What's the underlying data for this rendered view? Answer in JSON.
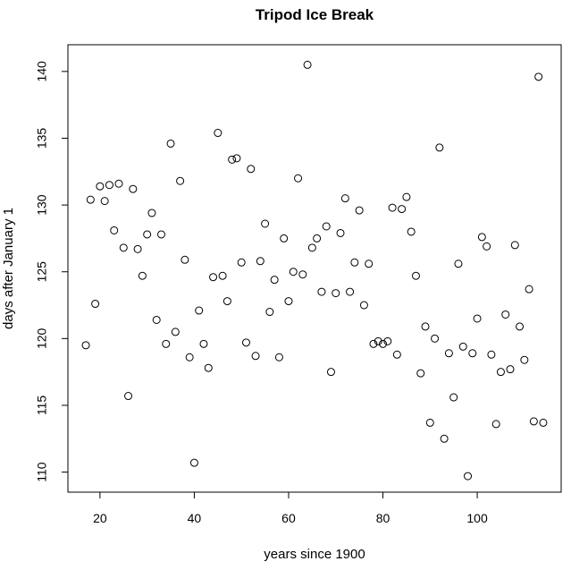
{
  "chart_data": {
    "type": "scatter",
    "title": "Tripod Ice Break",
    "xlabel": "years since 1900",
    "ylabel": "days after January 1",
    "xlim": [
      13.2,
      117.8
    ],
    "ylim": [
      108.5,
      142.0
    ],
    "x_ticks": [
      20,
      40,
      60,
      80,
      100
    ],
    "y_ticks": [
      110,
      115,
      120,
      125,
      130,
      135,
      140
    ],
    "grid": false,
    "marker": "open-circle",
    "points": [
      {
        "x": 17,
        "y": 119.5
      },
      {
        "x": 18,
        "y": 130.4
      },
      {
        "x": 19,
        "y": 122.6
      },
      {
        "x": 20,
        "y": 131.4
      },
      {
        "x": 21,
        "y": 130.3
      },
      {
        "x": 22,
        "y": 131.5
      },
      {
        "x": 23,
        "y": 128.1
      },
      {
        "x": 24,
        "y": 131.6
      },
      {
        "x": 25,
        "y": 126.8
      },
      {
        "x": 26,
        "y": 115.7
      },
      {
        "x": 27,
        "y": 131.2
      },
      {
        "x": 28,
        "y": 126.7
      },
      {
        "x": 29,
        "y": 124.7
      },
      {
        "x": 30,
        "y": 127.8
      },
      {
        "x": 31,
        "y": 129.4
      },
      {
        "x": 32,
        "y": 121.4
      },
      {
        "x": 33,
        "y": 127.8
      },
      {
        "x": 34,
        "y": 119.6
      },
      {
        "x": 35,
        "y": 134.6
      },
      {
        "x": 36,
        "y": 120.5
      },
      {
        "x": 37,
        "y": 131.8
      },
      {
        "x": 38,
        "y": 125.9
      },
      {
        "x": 39,
        "y": 118.6
      },
      {
        "x": 40,
        "y": 110.7
      },
      {
        "x": 41,
        "y": 122.1
      },
      {
        "x": 42,
        "y": 119.6
      },
      {
        "x": 43,
        "y": 117.8
      },
      {
        "x": 44,
        "y": 124.6
      },
      {
        "x": 45,
        "y": 135.4
      },
      {
        "x": 46,
        "y": 124.7
      },
      {
        "x": 47,
        "y": 122.8
      },
      {
        "x": 48,
        "y": 133.4
      },
      {
        "x": 49,
        "y": 133.5
      },
      {
        "x": 50,
        "y": 125.7
      },
      {
        "x": 51,
        "y": 119.7
      },
      {
        "x": 52,
        "y": 132.7
      },
      {
        "x": 53,
        "y": 118.7
      },
      {
        "x": 54,
        "y": 125.8
      },
      {
        "x": 55,
        "y": 128.6
      },
      {
        "x": 56,
        "y": 122.0
      },
      {
        "x": 57,
        "y": 124.4
      },
      {
        "x": 58,
        "y": 118.6
      },
      {
        "x": 59,
        "y": 127.5
      },
      {
        "x": 60,
        "y": 122.8
      },
      {
        "x": 61,
        "y": 125.0
      },
      {
        "x": 62,
        "y": 132.0
      },
      {
        "x": 63,
        "y": 124.8
      },
      {
        "x": 64,
        "y": 140.5
      },
      {
        "x": 65,
        "y": 126.8
      },
      {
        "x": 66,
        "y": 127.5
      },
      {
        "x": 67,
        "y": 123.5
      },
      {
        "x": 68,
        "y": 128.4
      },
      {
        "x": 69,
        "y": 117.5
      },
      {
        "x": 70,
        "y": 123.4
      },
      {
        "x": 71,
        "y": 127.9
      },
      {
        "x": 72,
        "y": 130.5
      },
      {
        "x": 73,
        "y": 123.5
      },
      {
        "x": 74,
        "y": 125.7
      },
      {
        "x": 75,
        "y": 129.6
      },
      {
        "x": 76,
        "y": 122.5
      },
      {
        "x": 77,
        "y": 125.6
      },
      {
        "x": 78,
        "y": 119.6
      },
      {
        "x": 79,
        "y": 119.8
      },
      {
        "x": 80,
        "y": 119.6
      },
      {
        "x": 81,
        "y": 119.8
      },
      {
        "x": 82,
        "y": 129.8
      },
      {
        "x": 83,
        "y": 118.8
      },
      {
        "x": 84,
        "y": 129.7
      },
      {
        "x": 85,
        "y": 130.6
      },
      {
        "x": 86,
        "y": 128.0
      },
      {
        "x": 87,
        "y": 124.7
      },
      {
        "x": 88,
        "y": 117.4
      },
      {
        "x": 89,
        "y": 120.9
      },
      {
        "x": 90,
        "y": 113.7
      },
      {
        "x": 91,
        "y": 120.0
      },
      {
        "x": 92,
        "y": 134.3
      },
      {
        "x": 93,
        "y": 112.5
      },
      {
        "x": 94,
        "y": 118.9
      },
      {
        "x": 95,
        "y": 115.6
      },
      {
        "x": 96,
        "y": 125.6
      },
      {
        "x": 97,
        "y": 119.4
      },
      {
        "x": 98,
        "y": 109.7
      },
      {
        "x": 99,
        "y": 118.9
      },
      {
        "x": 100,
        "y": 121.5
      },
      {
        "x": 101,
        "y": 127.6
      },
      {
        "x": 102,
        "y": 126.9
      },
      {
        "x": 103,
        "y": 118.8
      },
      {
        "x": 104,
        "y": 113.6
      },
      {
        "x": 105,
        "y": 117.5
      },
      {
        "x": 106,
        "y": 121.8
      },
      {
        "x": 107,
        "y": 117.7
      },
      {
        "x": 108,
        "y": 127.0
      },
      {
        "x": 109,
        "y": 120.9
      },
      {
        "x": 110,
        "y": 118.4
      },
      {
        "x": 111,
        "y": 123.7
      },
      {
        "x": 112,
        "y": 113.8
      },
      {
        "x": 113,
        "y": 139.6
      },
      {
        "x": 114,
        "y": 113.7
      }
    ]
  }
}
